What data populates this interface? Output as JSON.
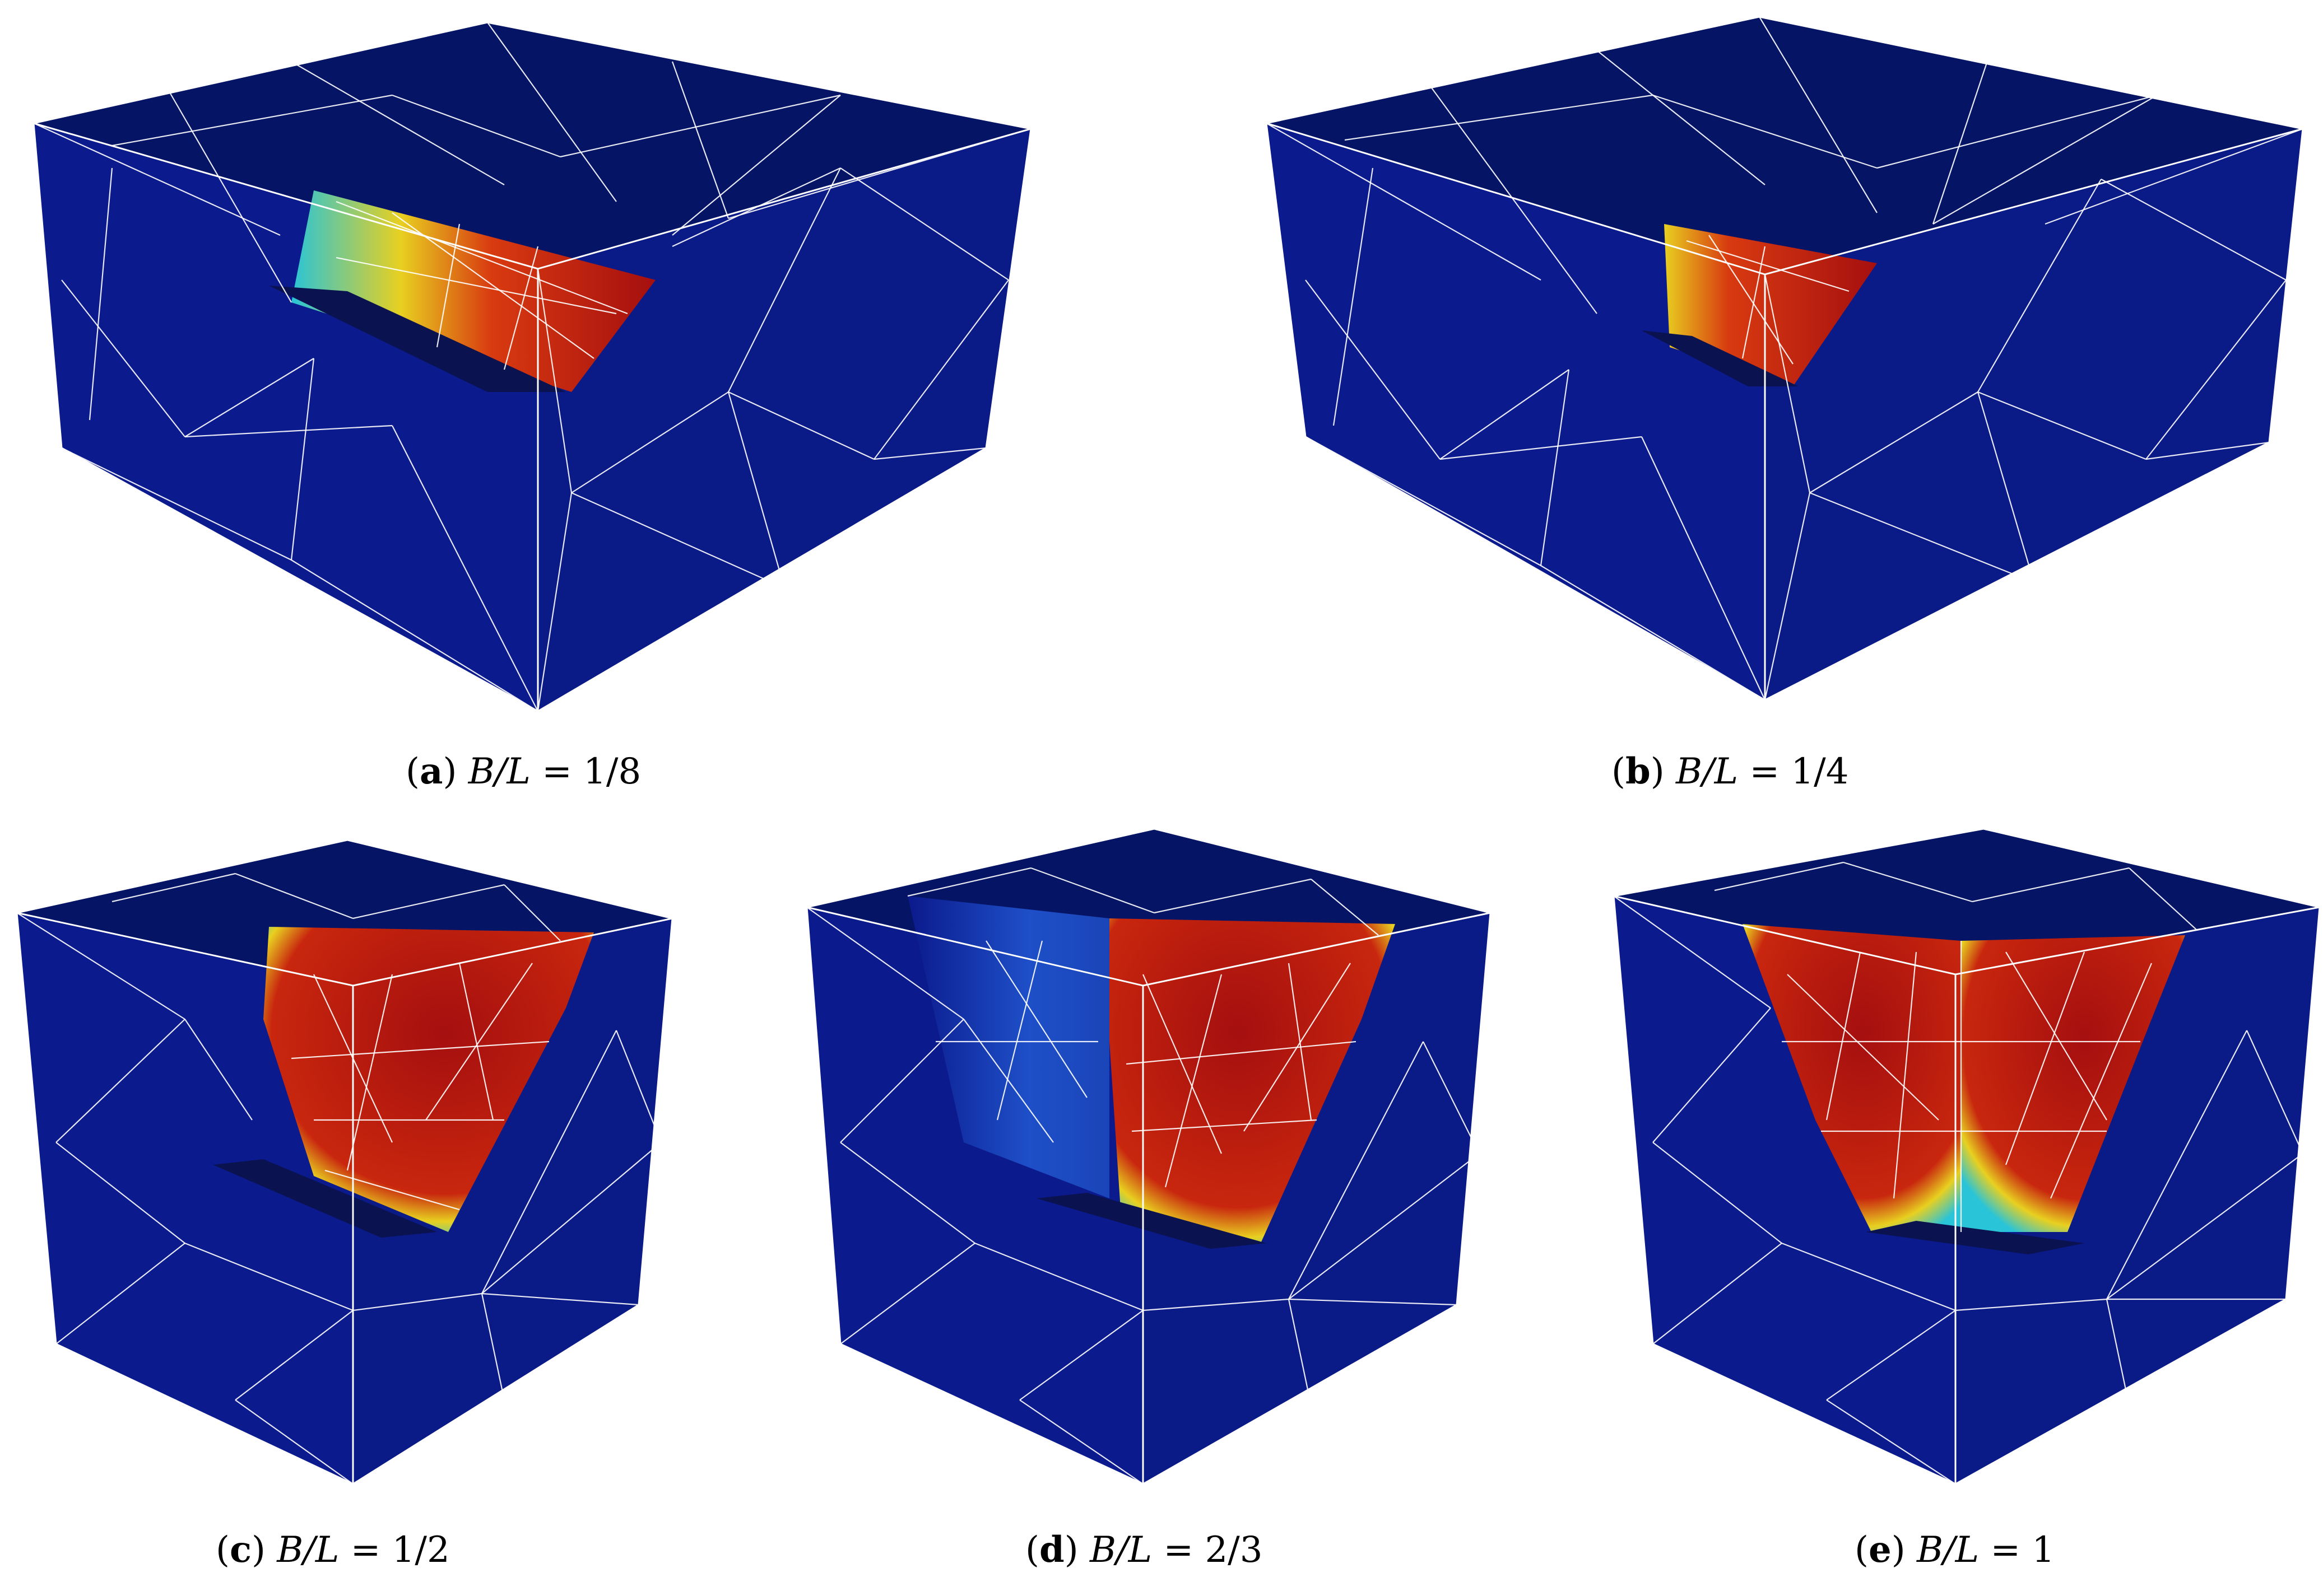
{
  "figure": {
    "panels": [
      {
        "id": "a",
        "letter": "a",
        "label": "B/L",
        "value": "1/8"
      },
      {
        "id": "b",
        "letter": "b",
        "label": "B/L",
        "value": "1/4"
      },
      {
        "id": "c",
        "letter": "c",
        "label": "B/L",
        "value": "1/2"
      },
      {
        "id": "d",
        "letter": "d",
        "label": "B/L",
        "value": "2/3"
      },
      {
        "id": "e",
        "letter": "e",
        "label": "B/L",
        "value": "1"
      }
    ],
    "colors": {
      "background_blue": "#0b1a8c",
      "top_face_blue": "#051465",
      "right_face_blue": "#0a1a86",
      "high_red": "#a50f0f",
      "mid_yellow": "#e8d020",
      "low_cyan": "#29c4d8",
      "mesh_line": "#ffffff"
    },
    "colormap": "jet",
    "mesh": "tetrahedral finite element mesh"
  }
}
